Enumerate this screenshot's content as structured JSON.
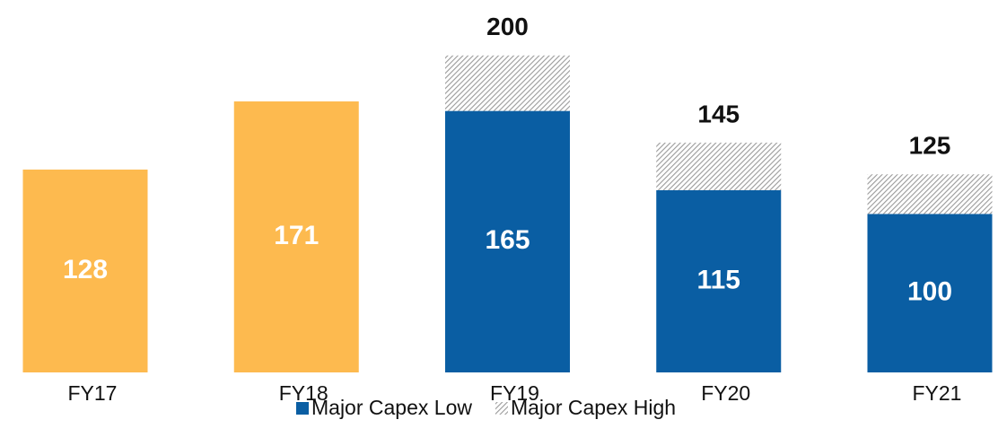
{
  "chart_data": {
    "type": "stacked_bar",
    "categories": [
      "FY17",
      "FY18",
      "FY19",
      "FY20",
      "FY21"
    ],
    "series": [
      {
        "color": "#FDBA4F",
        "values": [
          128,
          171,
          null,
          null,
          null
        ],
        "show_labels": true
      },
      {
        "name": "Major Capex Low",
        "color": "#0A5EA3",
        "values": [
          null,
          null,
          165,
          115,
          100
        ],
        "show_labels": true
      },
      {
        "name": "Major Capex High",
        "color": "#9a9a9a",
        "hatch": true,
        "values": [
          null,
          null,
          35,
          30,
          25
        ],
        "show_labels": false
      }
    ],
    "totals": [
      null,
      null,
      200,
      145,
      125
    ],
    "ylim": [
      0,
      235
    ],
    "grid": false,
    "legend": "bottom"
  }
}
